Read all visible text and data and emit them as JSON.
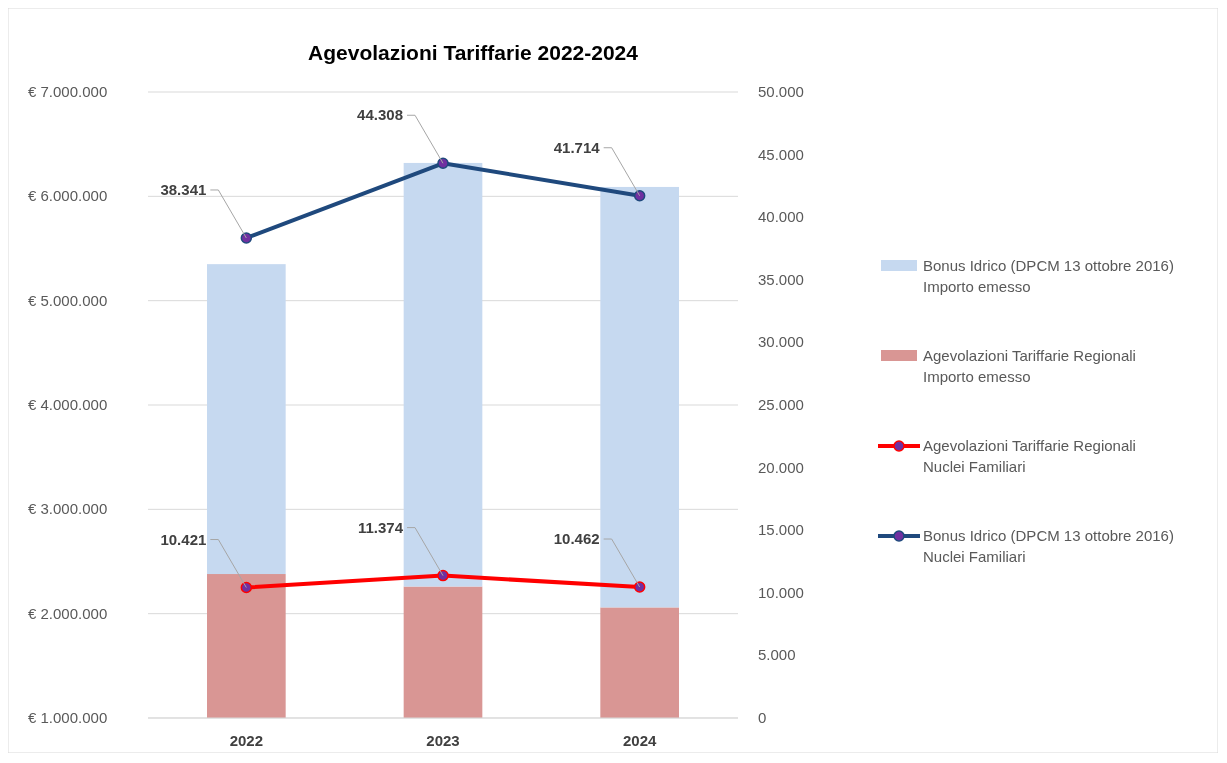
{
  "chart_data": {
    "type": "bar",
    "title": "Agevolazioni Tariffarie  2022-2024",
    "categories": [
      "2022",
      "2023",
      "2024"
    ],
    "stacked": true,
    "legend": "right",
    "grid": "y",
    "marker": "circle",
    "line_style": "solid",
    "series": [
      {
        "name": "Agevolazioni Tariffarie Regionali Importo emesso",
        "color": "#d99694",
        "values": [
          2380000,
          2260000,
          2060000
        ]
      },
      {
        "name": "Bonus Idrico (DPCM 13 ottobre 2016) Importo emesso",
        "color": "#c6d9f0",
        "values": [
          2970000,
          4060000,
          4030000
        ]
      },
      {
        "name": "Agevolazioni Tariffarie Regionali Nuclei Familiari",
        "type": "line",
        "axis": "y2",
        "color": "#ff0000",
        "values": [
          10421,
          11374,
          10462
        ],
        "value_labels": [
          "10.421",
          "11.374",
          "10.462"
        ]
      },
      {
        "name": "Bonus Idrico (DPCM 13 ottobre 2016) Nuclei Familiari",
        "type": "line",
        "axis": "y2",
        "color": "#1f497d",
        "values": [
          38341,
          44308,
          41714
        ],
        "value_labels": [
          "38.341",
          "44.308",
          "41.714"
        ]
      }
    ],
    "ylim": [
      1000000,
      7000000
    ],
    "yticks": [
      {
        "value": 1000000,
        "label": "€ 1.000.000"
      },
      {
        "value": 2000000,
        "label": "€ 2.000.000"
      },
      {
        "value": 3000000,
        "label": "€ 3.000.000"
      },
      {
        "value": 4000000,
        "label": "€ 4.000.000"
      },
      {
        "value": 5000000,
        "label": "€ 5.000.000"
      },
      {
        "value": 6000000,
        "label": "€ 6.000.000"
      },
      {
        "value": 7000000,
        "label": "€ 7.000.000"
      }
    ],
    "y2lim": [
      0,
      50000
    ],
    "y2ticks": [
      0,
      {
        "value": 5000,
        "label": "5.000"
      },
      {
        "value": 10000,
        "label": "10.000"
      },
      {
        "value": 15000,
        "label": "15.000"
      },
      {
        "value": 20000,
        "label": "20.000"
      },
      {
        "value": 25000,
        "label": "25.000"
      },
      {
        "value": 30000,
        "label": "30.000"
      },
      {
        "value": 35000,
        "label": "35.000"
      },
      {
        "value": 40000,
        "label": "40.000"
      },
      {
        "value": 45000,
        "label": "45.000"
      },
      {
        "value": 50000,
        "label": "50.000"
      }
    ]
  }
}
